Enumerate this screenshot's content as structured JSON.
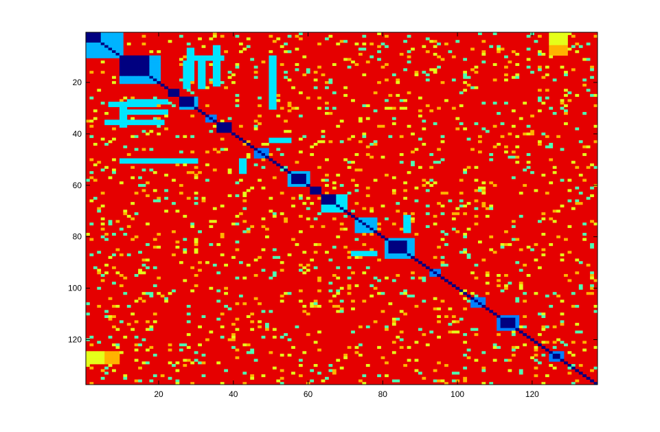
{
  "chart_data": {
    "type": "heatmap",
    "title": "",
    "xlabel": "",
    "ylabel": "",
    "n": 137,
    "xlim": [
      1,
      137
    ],
    "ylim": [
      137,
      1
    ],
    "x_ticks": [
      20,
      40,
      60,
      80,
      100,
      120
    ],
    "y_ticks": [
      20,
      40,
      60,
      80,
      100,
      120
    ],
    "x_tick_labels": [
      "20",
      "40",
      "60",
      "80",
      "100",
      "120"
    ],
    "y_tick_labels": [
      "20",
      "40",
      "60",
      "80",
      "100",
      "120"
    ],
    "colormap": "jet",
    "value_range": [
      0,
      1
    ],
    "background_value": 0.9,
    "diagonal_value": 0.0,
    "blocks": [
      {
        "start": 1,
        "end": 10,
        "value": 0.3
      },
      {
        "start": 1,
        "end": 4,
        "value": 0.0
      },
      {
        "start": 10,
        "end": 20,
        "value": 0.3
      },
      {
        "start": 10,
        "end": 17,
        "value": 0.0
      },
      {
        "start": 23,
        "end": 25,
        "value": 0.0
      },
      {
        "start": 26,
        "end": 30,
        "value": 0.3
      },
      {
        "start": 26,
        "end": 29,
        "value": 0.0
      },
      {
        "start": 33,
        "end": 35,
        "value": 0.25
      },
      {
        "start": 36,
        "end": 39,
        "value": 0.0
      },
      {
        "start": 46,
        "end": 49,
        "value": 0.25
      },
      {
        "start": 55,
        "end": 60,
        "value": 0.3
      },
      {
        "start": 56,
        "end": 59,
        "value": 0.0
      },
      {
        "start": 61,
        "end": 63,
        "value": 0.0
      },
      {
        "start": 64,
        "end": 70,
        "value": 0.35
      },
      {
        "start": 64,
        "end": 67,
        "value": 0.0
      },
      {
        "start": 73,
        "end": 78,
        "value": 0.3
      },
      {
        "start": 81,
        "end": 88,
        "value": 0.3
      },
      {
        "start": 82,
        "end": 86,
        "value": 0.0
      },
      {
        "start": 93,
        "end": 95,
        "value": 0.25
      },
      {
        "start": 104,
        "end": 107,
        "value": 0.25
      },
      {
        "start": 111,
        "end": 116,
        "value": 0.25
      },
      {
        "start": 112,
        "end": 115,
        "value": 0.0
      },
      {
        "start": 125,
        "end": 128,
        "value": 0.25
      },
      {
        "start": 126,
        "end": 127,
        "value": 0.0
      }
    ],
    "rectangles": [
      {
        "x": [
          10,
          11
        ],
        "y": [
          30,
          37
        ],
        "value": 0.35
      },
      {
        "x": [
          28,
          29
        ],
        "y": [
          7,
          19
        ],
        "value": 0.35
      },
      {
        "x": [
          35,
          36
        ],
        "y": [
          6,
          21
        ],
        "value": 0.35
      },
      {
        "x": [
          12,
          22
        ],
        "y": [
          27,
          28
        ],
        "value": 0.35
      },
      {
        "x": [
          12,
          22
        ],
        "y": [
          31,
          32
        ],
        "value": 0.35
      },
      {
        "x": [
          10,
          30
        ],
        "y": [
          50,
          51
        ],
        "value": 0.35
      },
      {
        "x": [
          50,
          55
        ],
        "y": [
          42,
          43
        ],
        "value": 0.35
      },
      {
        "x": [
          72,
          78
        ],
        "y": [
          86,
          87
        ],
        "value": 0.35
      },
      {
        "x": [
          125,
          129
        ],
        "y": [
          1,
          6
        ],
        "value": 0.6
      },
      {
        "x": [
          125,
          129
        ],
        "y": [
          6,
          9
        ],
        "value": 0.7
      },
      {
        "x": [
          1,
          5
        ],
        "y": [
          127,
          129
        ],
        "value": 0.6
      }
    ],
    "speckle": {
      "density": 0.085,
      "seed": 7,
      "levels": [
        0.6,
        0.7,
        0.45
      ]
    }
  }
}
